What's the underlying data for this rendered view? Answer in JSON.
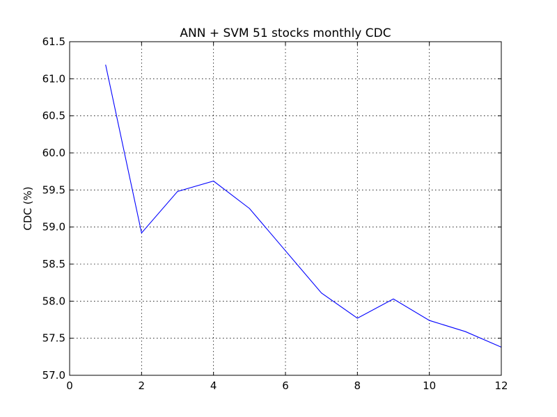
{
  "chart_data": {
    "type": "line",
    "title": "ANN + SVM 51 stocks monthly CDC",
    "xlabel": "",
    "ylabel": "CDC (%)",
    "xlim": [
      0,
      12
    ],
    "ylim": [
      57.0,
      61.5
    ],
    "xticks": [
      0,
      2,
      4,
      6,
      8,
      10,
      12
    ],
    "xtick_labels": [
      "0",
      "2",
      "4",
      "6",
      "8",
      "10",
      "12"
    ],
    "yticks": [
      57.0,
      57.5,
      58.0,
      58.5,
      59.0,
      59.5,
      60.0,
      60.5,
      61.0,
      61.5
    ],
    "ytick_labels": [
      "57.0",
      "57.5",
      "58.0",
      "58.5",
      "59.0",
      "59.5",
      "60.0",
      "60.5",
      "61.0",
      "61.5"
    ],
    "grid": true,
    "series": [
      {
        "color": "#0000ff",
        "x": [
          1,
          2,
          3,
          4,
          5,
          6,
          7,
          8,
          9,
          10,
          11,
          12
        ],
        "y": [
          61.19,
          58.92,
          59.48,
          59.62,
          59.25,
          58.68,
          58.11,
          57.77,
          58.03,
          57.74,
          57.59,
          57.38
        ]
      }
    ]
  }
}
